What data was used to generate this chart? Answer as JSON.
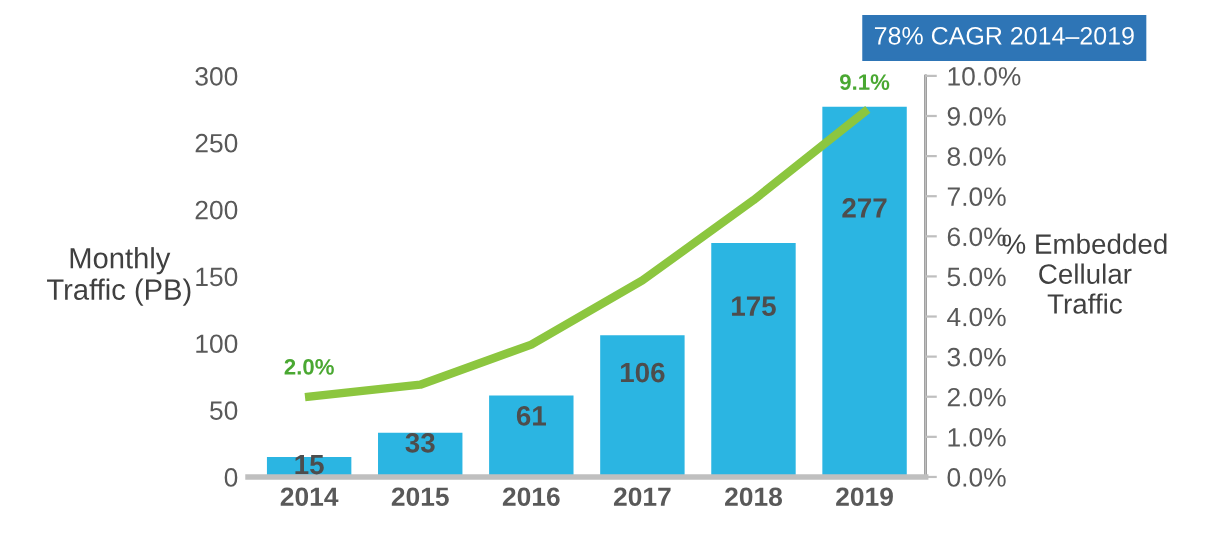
{
  "chart_data": {
    "type": "bar",
    "categories": [
      "2014",
      "2015",
      "2016",
      "2017",
      "2018",
      "2019"
    ],
    "ylabel": "Monthly\nTraffic (PB)",
    "y2label": "% Embedded\nCellular\nTraffic",
    "annotations": [
      "78% CAGR 2014–2019"
    ],
    "ylim": [
      0,
      300
    ],
    "yticks": [
      0,
      50,
      100,
      150,
      200,
      250,
      300
    ],
    "y2lim": [
      0,
      10
    ],
    "y2ticks": [
      {
        "value": 0,
        "label": "0.0%"
      },
      {
        "value": 1,
        "label": "1.0%"
      },
      {
        "value": 2,
        "label": "2.0%"
      },
      {
        "value": 3,
        "label": "3.0%"
      },
      {
        "value": 4,
        "label": "4.0%"
      },
      {
        "value": 5,
        "label": "5.0%"
      },
      {
        "value": 6,
        "label": "6.0%"
      },
      {
        "value": 7,
        "label": "7.0%"
      },
      {
        "value": 8,
        "label": "8.0%"
      },
      {
        "value": 9,
        "label": "9.0%"
      },
      {
        "value": 10,
        "label": "10.0%"
      }
    ],
    "grid": false,
    "legend": false,
    "series": [
      {
        "color": "#2bb5e2",
        "values": [
          15,
          33,
          61,
          106,
          175,
          277
        ],
        "data_labels": true
      },
      {
        "type": "line",
        "axis": "y2",
        "color": "#8cc63f",
        "values": [
          2.0,
          2.3,
          3.3,
          4.9,
          6.9,
          9.1
        ],
        "value_labels": [
          "2.0%",
          null,
          null,
          null,
          null,
          "9.1%"
        ],
        "marker": "none",
        "line_style": "solid"
      }
    ]
  }
}
